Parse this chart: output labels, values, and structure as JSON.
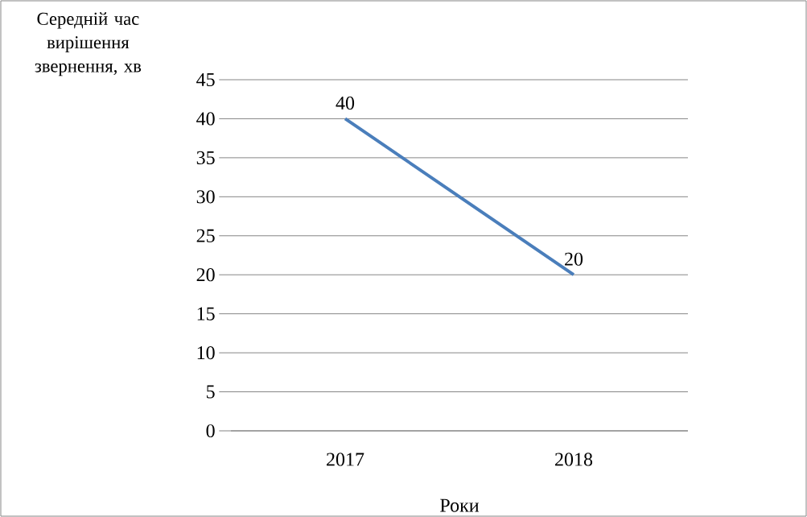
{
  "chart_data": {
    "type": "line",
    "ylabel": "Середній час вирішення звернення, хв",
    "xlabel": "Роки",
    "categories": [
      "2017",
      "2018"
    ],
    "series": [
      {
        "color": "#4a7ebb",
        "values": [
          40,
          20
        ]
      }
    ],
    "ylim": [
      0,
      45
    ],
    "yticks": [
      0,
      5,
      10,
      15,
      20,
      25,
      30,
      35,
      40,
      45
    ],
    "grid": "y",
    "data_labels": true,
    "marker": "none",
    "line_style": "solid"
  }
}
